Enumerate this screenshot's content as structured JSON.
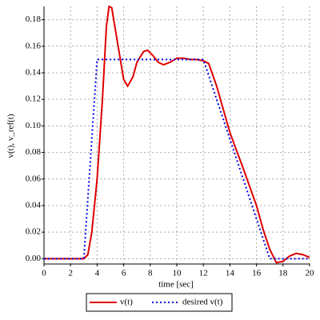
{
  "chart_data": {
    "type": "line",
    "xlabel": "time [sec]",
    "ylabel": "v(t), v_ref(t)",
    "x": [
      0,
      3,
      3.3,
      3.6,
      4,
      4.4,
      4.7,
      4.9,
      5.1,
      5.5,
      6,
      6.3,
      6.7,
      7,
      7.5,
      7.8,
      8.2,
      8.6,
      9,
      9.5,
      10,
      10.5,
      11,
      11.5,
      12,
      12.4,
      13,
      14,
      15,
      16,
      16.5,
      17,
      17.5,
      18,
      18.5,
      19,
      19.5,
      20
    ],
    "series": [
      {
        "name": "v(t)",
        "color": "#e00000",
        "dash": "solid",
        "values": [
          0,
          0,
          0.003,
          0.02,
          0.06,
          0.12,
          0.175,
          0.19,
          0.189,
          0.165,
          0.135,
          0.13,
          0.137,
          0.148,
          0.156,
          0.157,
          0.153,
          0.148,
          0.146,
          0.148,
          0.151,
          0.151,
          0.15,
          0.15,
          0.149,
          0.147,
          0.13,
          0.095,
          0.068,
          0.04,
          0.022,
          0.007,
          -0.003,
          -0.002,
          0.002,
          0.004,
          0.003,
          0.001
        ]
      },
      {
        "name": "desired v(t)",
        "color": "#0000e0",
        "dash": "dotted",
        "values": [
          0,
          0,
          0.045,
          0.09,
          0.15,
          0.15,
          0.15,
          0.15,
          0.15,
          0.15,
          0.15,
          0.15,
          0.15,
          0.15,
          0.15,
          0.15,
          0.15,
          0.15,
          0.15,
          0.15,
          0.15,
          0.15,
          0.15,
          0.15,
          0.15,
          0.138,
          0.12,
          0.09,
          0.06,
          0.03,
          0.015,
          0,
          0,
          0,
          0,
          0,
          0,
          0
        ]
      }
    ],
    "xlim": [
      0,
      20
    ],
    "xticks": [
      0,
      2,
      4,
      6,
      8,
      10,
      12,
      14,
      16,
      18,
      20
    ],
    "ylim": [
      -0.004,
      0.19
    ],
    "yticks": [
      {
        "value": 0,
        "label": "0.00"
      },
      {
        "value": 0.02,
        "label": "0.02"
      },
      {
        "value": 0.04,
        "label": "0.04"
      },
      {
        "value": 0.06,
        "label": "0.06"
      },
      {
        "value": 0.08,
        "label": "0.08"
      },
      {
        "value": 0.1,
        "label": "0.10"
      },
      {
        "value": 0.12,
        "label": "0.12"
      },
      {
        "value": 0.14,
        "label": "0.14"
      },
      {
        "value": 0.16,
        "label": "0.16"
      },
      {
        "value": 0.18,
        "label": "0.18"
      }
    ],
    "grid": true,
    "legend": "bottom"
  }
}
